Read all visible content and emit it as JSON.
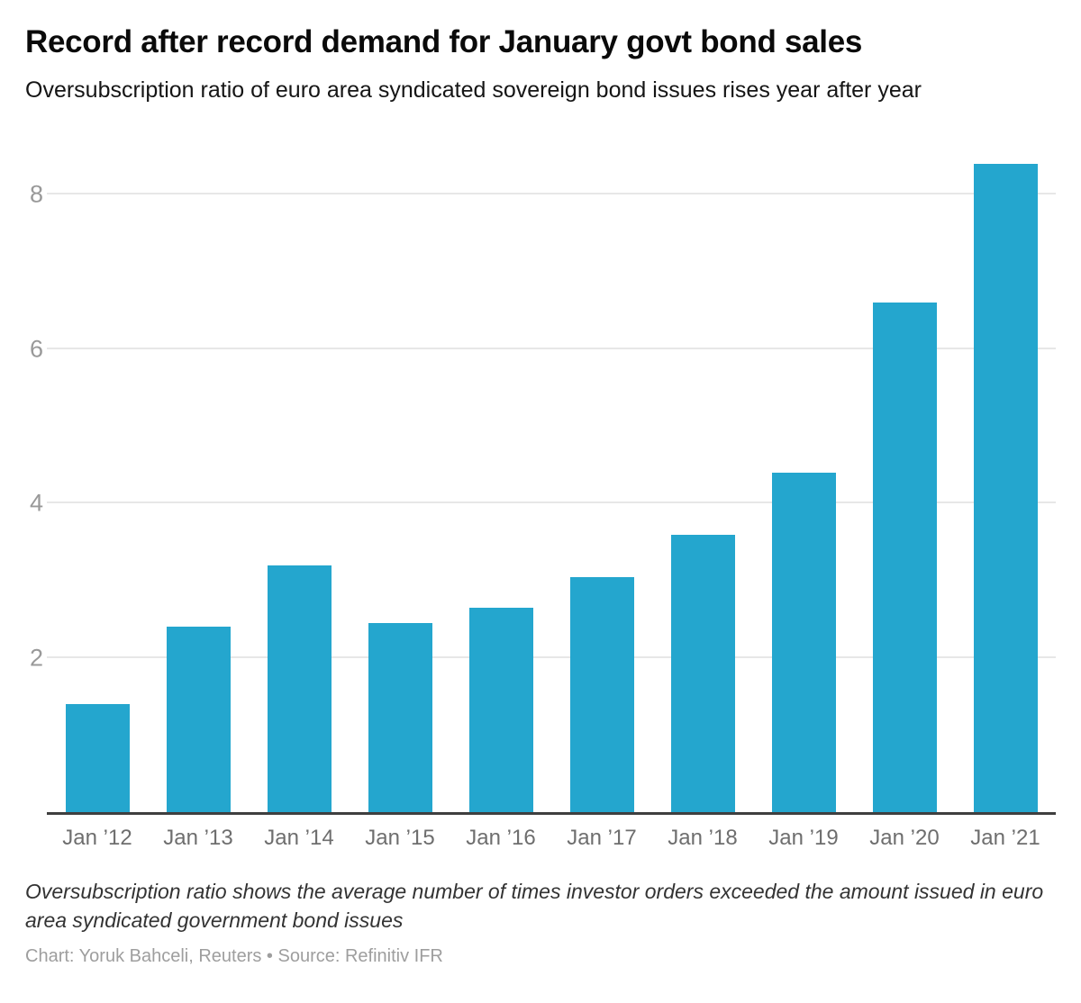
{
  "header": {
    "title": "Record after record demand for January govt bond sales",
    "subtitle": "Oversubscription ratio of euro area syndicated sovereign bond issues rises year after year"
  },
  "chart_data": {
    "type": "bar",
    "title": "Record after record demand for January govt bond sales",
    "subtitle": "Oversubscription ratio of euro area syndicated sovereign bond issues rises year after year",
    "categories": [
      "Jan ’12",
      "Jan ’13",
      "Jan ’14",
      "Jan ’15",
      "Jan ’16",
      "Jan ’17",
      "Jan ’18",
      "Jan ’19",
      "Jan ’20",
      "Jan ’21"
    ],
    "values": [
      1.4,
      2.4,
      3.2,
      2.45,
      2.65,
      3.05,
      3.6,
      4.4,
      6.6,
      8.4
    ],
    "xlabel": "",
    "ylabel": "",
    "yticks": [
      2,
      4,
      6,
      8
    ],
    "ylim": [
      0,
      8.6
    ],
    "grid": true,
    "legend": false
  },
  "colors": {
    "bar": "#24a6ce",
    "gridline": "#e7e7e7",
    "axis_line": "#3f3f3f",
    "y_tick_label": "#999999",
    "x_label": "#6e6e6e",
    "note_text": "#333333",
    "credit_text": "#9e9e9e"
  },
  "footer": {
    "note": "Oversubscription ratio shows the average number of times investor orders exceeded the amount issued in euro area syndicated government bond issues",
    "credit": "Chart: Yoruk Bahceli, Reuters • Source: Refinitiv IFR"
  }
}
